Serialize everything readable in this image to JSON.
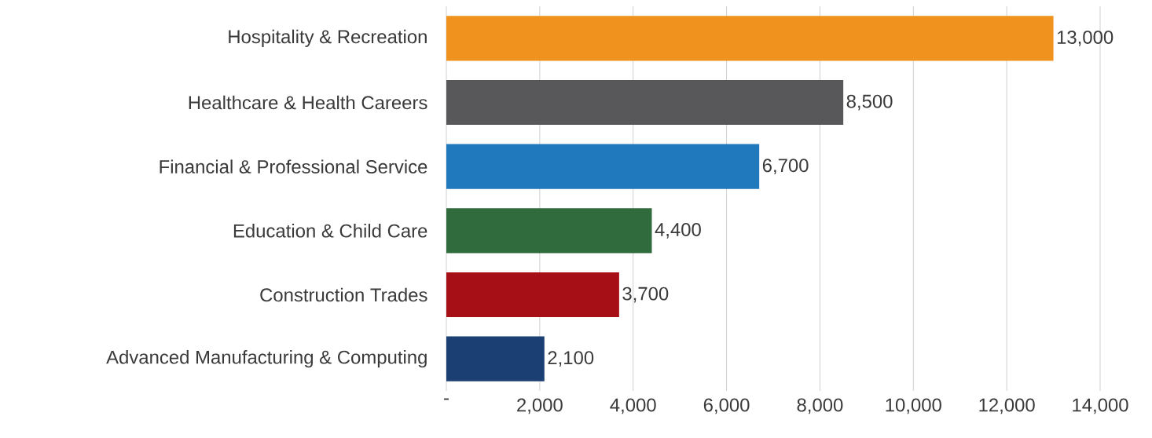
{
  "chart_data": {
    "type": "bar",
    "orientation": "horizontal",
    "categories": [
      "Hospitality & Recreation",
      "Healthcare & Health Careers",
      "Financial & Professional Service",
      "Education & Child Care",
      "Construction Trades",
      "Advanced Manufacturing & Computing"
    ],
    "values": [
      13000,
      8500,
      6700,
      4400,
      3700,
      2100
    ],
    "value_labels": [
      "13,000",
      "8,500",
      "6,700",
      "4,400",
      "3,700",
      "2,100"
    ],
    "colors": [
      "#f0931e",
      "#58585a",
      "#2078bd",
      "#2f6b3c",
      "#a50f15",
      "#1b3f73"
    ],
    "xlim": [
      0,
      14000
    ],
    "xticks": [
      {
        "value": 0,
        "label": "-"
      },
      {
        "value": 2000,
        "label": "2,000"
      },
      {
        "value": 4000,
        "label": "4,000"
      },
      {
        "value": 6000,
        "label": "6,000"
      },
      {
        "value": 8000,
        "label": "8,000"
      },
      {
        "value": 10000,
        "label": "10,000"
      },
      {
        "value": 12000,
        "label": "12,000"
      },
      {
        "value": 14000,
        "label": "14,000"
      }
    ],
    "grid": "x"
  }
}
